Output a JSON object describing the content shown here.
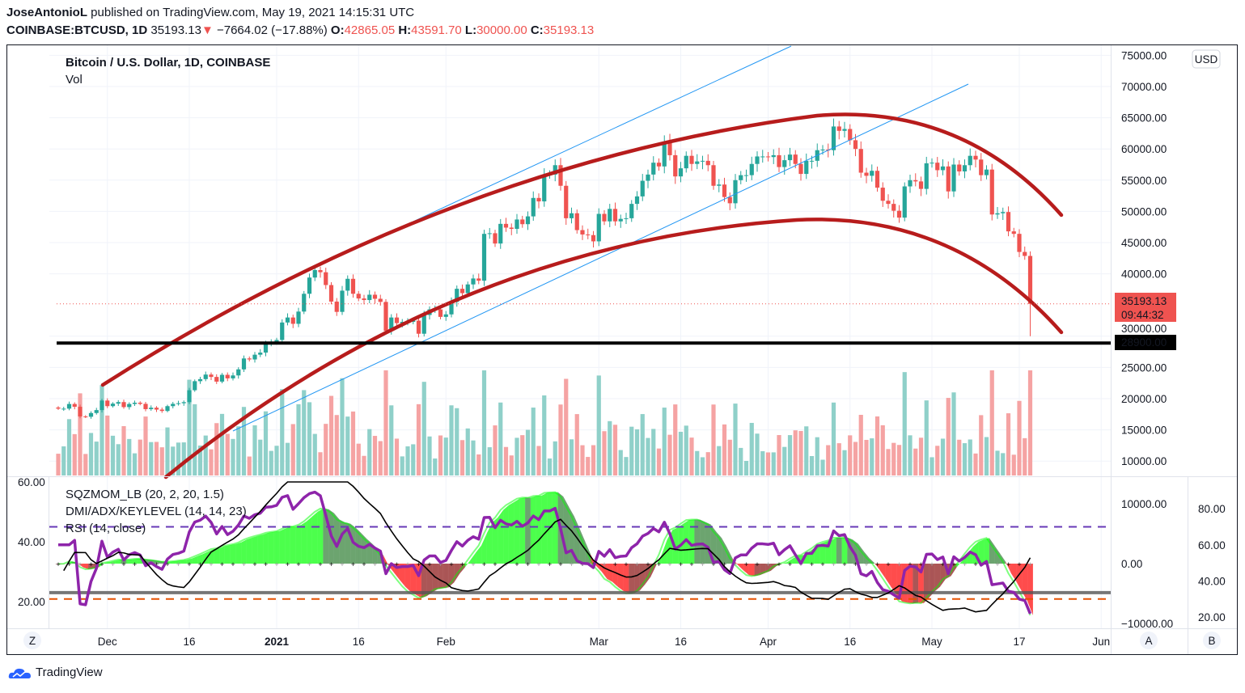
{
  "header": {
    "author": "JoseAntonioL",
    "published_text": "published on TradingView.com, May 19, 2021 14:15:31 UTC",
    "symbol": "COINBASE:BTCUSD, 1D",
    "last": "35193.13",
    "change": "−7664.02 (−17.88%)",
    "o_label": "O:",
    "o": "42865.05",
    "h_label": "H:",
    "h": "43591.70",
    "l_label": "L:",
    "l": "30000.00",
    "c_label": "C:",
    "c": "35193.13"
  },
  "legend": {
    "title": "Bitcoin / U.S. Dollar, 1D, COINBASE",
    "vol": "Vol",
    "ind1": "SQZMOM_LB (20, 2, 20, 1.5)",
    "ind2": "DMI/ADX/KEYLEVEL (14, 14, 23)",
    "ind3": "RSI (14, close)"
  },
  "price_axis": {
    "currency": "USD",
    "ticks": [
      "75000.00",
      "70000.00",
      "65000.00",
      "60000.00",
      "55000.00",
      "50000.00",
      "45000.00",
      "40000.00",
      "30000.00",
      "25000.00",
      "20000.00",
      "15000.00",
      "10000.00"
    ],
    "last_price_label": "35193.13",
    "countdown": "09:44:32",
    "level_label": "28900.00"
  },
  "indicator_axes": {
    "left_ticks": [
      "60.00",
      "40.00",
      "20.00"
    ],
    "a_ticks": [
      "10000.00",
      "0.00",
      "−10000.00"
    ],
    "b_ticks": [
      "80.00",
      "60.00",
      "40.00",
      "20.00"
    ],
    "a_button": "A",
    "b_button": "B",
    "z_button": "Z"
  },
  "brand": "TradingView",
  "colors": {
    "up": "#26a69a",
    "down": "#ef5350",
    "vol_up": "#8fd0c9",
    "vol_down": "#f5a3a3",
    "arc": "#b71c1c",
    "trend": "#2196f3",
    "level": "#000000",
    "rsi": "#8e24aa",
    "adx": "#000000",
    "sqz_lime": "#00ff00",
    "sqz_green": "#2e7d32",
    "sqz_red": "#ff0000",
    "sqz_maroon": "#880e0e"
  },
  "chart_data": {
    "type": "candlestick",
    "title": "Bitcoin / U.S. Dollar, 1D, COINBASE",
    "start_date": "2020-11-22",
    "ylim": [
      5000,
      75000
    ],
    "x_ticks": [
      {
        "label": "Dec",
        "date": "2020-12-01"
      },
      {
        "label": "16",
        "date": "2020-12-16"
      },
      {
        "label": "2021",
        "date": "2021-01-01"
      },
      {
        "label": "16",
        "date": "2021-01-16"
      },
      {
        "label": "Feb",
        "date": "2021-02-01"
      },
      {
        "label": "Mar",
        "date": "2021-03-01"
      },
      {
        "label": "16",
        "date": "2021-03-16"
      },
      {
        "label": "Apr",
        "date": "2021-04-01"
      },
      {
        "label": "16",
        "date": "2021-04-16"
      },
      {
        "label": "May",
        "date": "2021-05-01"
      },
      {
        "label": "17",
        "date": "2021-05-17"
      },
      {
        "label": "Jun",
        "date": "2021-06-01"
      }
    ],
    "close": [
      18400,
      18400,
      19150,
      18700,
      17150,
      17100,
      17700,
      18170,
      19700,
      18800,
      19200,
      19450,
      18650,
      19150,
      19350,
      19170,
      18320,
      18550,
      18250,
      18030,
      18800,
      19170,
      19270,
      19440,
      21350,
      22800,
      23130,
      23860,
      23480,
      22730,
      23820,
      23250,
      23720,
      24690,
      26440,
      26280,
      27040,
      27380,
      28880,
      28990,
      29400,
      32200,
      33000,
      31990,
      33950,
      36800,
      39400,
      40600,
      40250,
      38200,
      35550,
      33900,
      37300,
      39200,
      36800,
      36050,
      35800,
      36650,
      36000,
      35500,
      30850,
      33000,
      32100,
      32300,
      32300,
      32500,
      30400,
      33400,
      34300,
      34300,
      33100,
      33500,
      35500,
      37600,
      36900,
      38300,
      39250,
      38900,
      46400,
      46500,
      44850,
      48000,
      47400,
      47200,
      48700,
      47950,
      49200,
      52150,
      51600,
      55900,
      55900,
      57400,
      54100,
      48900,
      49700,
      47000,
      46300,
      46200,
      45200,
      49600,
      48400,
      50400,
      48400,
      48800,
      48900,
      51200,
      52400,
      54900,
      55900,
      57800,
      57200,
      61200,
      59000,
      55600,
      56900,
      58900,
      57600,
      58000,
      58100,
      57400,
      54100,
      54300,
      52300,
      51300,
      55000,
      55800,
      55800,
      57600,
      58800,
      58800,
      58700,
      59000,
      57100,
      58200,
      59100,
      57600,
      56000,
      58100,
      58100,
      59800,
      59900,
      59800,
      63600,
      62900,
      63200,
      61400,
      60000,
      56200,
      55700,
      56500,
      53800,
      51700,
      51200,
      50100,
      49000,
      54000,
      55000,
      54800,
      53600,
      57700,
      57800,
      56600,
      57200,
      53200,
      57500,
      56400,
      57400,
      58900,
      58300,
      55800,
      56700,
      49500,
      49700,
      49900,
      46800,
      46400,
      43500,
      42865,
      35193.13
    ],
    "last_candle": {
      "open": 42865.05,
      "high": 43591.7,
      "low": 30000.0,
      "close": 35193.13
    },
    "horizontal_level": 28900,
    "rsi_levels": [
      70,
      30
    ],
    "adx_key_level": 23
  }
}
